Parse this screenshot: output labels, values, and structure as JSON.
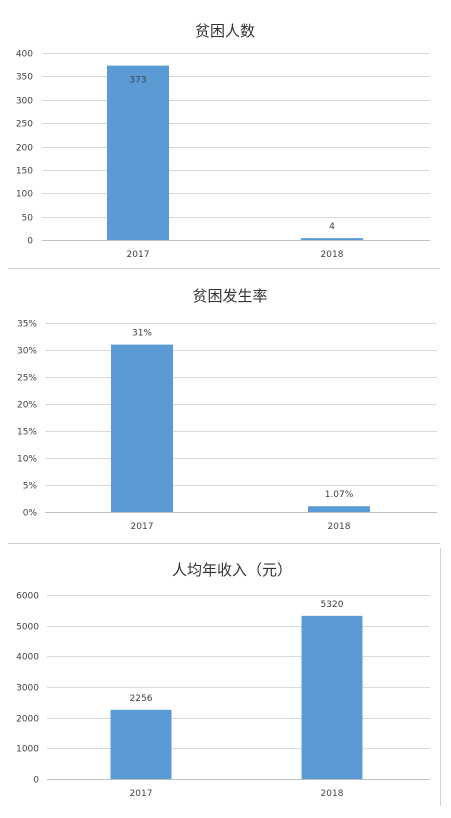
{
  "chart_data": [
    {
      "type": "bar",
      "title": "贫困人数",
      "categories": [
        "2017",
        "2018"
      ],
      "values": [
        373,
        4
      ],
      "data_labels": [
        "373",
        "4"
      ],
      "ylim": [
        0,
        400
      ],
      "yticks": [
        0,
        50,
        100,
        150,
        200,
        250,
        300,
        350,
        400
      ],
      "ytick_labels": [
        "0",
        "50",
        "100",
        "150",
        "200",
        "250",
        "300",
        "350",
        "400"
      ],
      "grid": true,
      "legend": "none",
      "bar_color": "#5b9bd5"
    },
    {
      "type": "bar",
      "title": "贫困发生率",
      "categories": [
        "2017",
        "2018"
      ],
      "values": [
        31,
        1.07
      ],
      "data_labels": [
        "31%",
        "1.07%"
      ],
      "ylim": [
        0,
        35
      ],
      "yticks": [
        0,
        5,
        10,
        15,
        20,
        25,
        30,
        35
      ],
      "ytick_labels": [
        "0%",
        "5%",
        "10%",
        "15%",
        "20%",
        "25%",
        "30%",
        "35%"
      ],
      "grid": true,
      "legend": "none",
      "bar_color": "#5b9bd5"
    },
    {
      "type": "bar",
      "title": "人均年收入（元）",
      "categories": [
        "2017",
        "2018"
      ],
      "values": [
        2256,
        5320
      ],
      "data_labels": [
        "2256",
        "5320"
      ],
      "ylim": [
        0,
        6000
      ],
      "yticks": [
        0,
        1000,
        2000,
        3000,
        4000,
        5000,
        6000
      ],
      "ytick_labels": [
        "0",
        "1000",
        "2000",
        "3000",
        "4000",
        "5000",
        "6000"
      ],
      "grid": true,
      "legend": "none",
      "bar_color": "#5b9bd5"
    }
  ]
}
